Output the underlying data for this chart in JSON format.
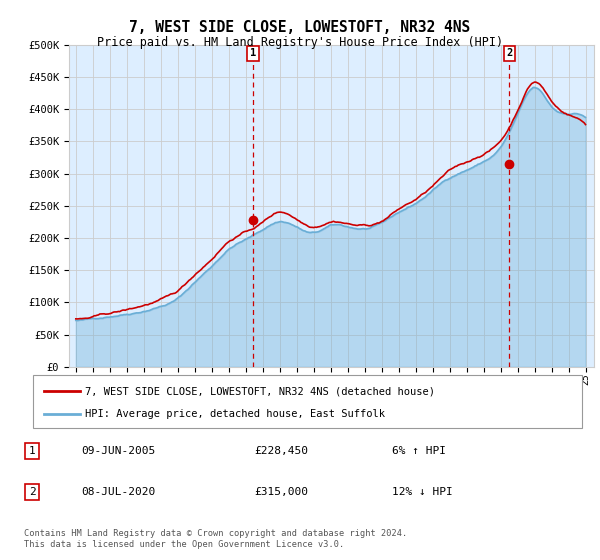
{
  "title": "7, WEST SIDE CLOSE, LOWESTOFT, NR32 4NS",
  "subtitle": "Price paid vs. HM Land Registry's House Price Index (HPI)",
  "ylabel_ticks": [
    "£0",
    "£50K",
    "£100K",
    "£150K",
    "£200K",
    "£250K",
    "£300K",
    "£350K",
    "£400K",
    "£450K",
    "£500K"
  ],
  "ytick_values": [
    0,
    50000,
    100000,
    150000,
    200000,
    250000,
    300000,
    350000,
    400000,
    450000,
    500000
  ],
  "ylim": [
    0,
    500000
  ],
  "legend_line1": "7, WEST SIDE CLOSE, LOWESTOFT, NR32 4NS (detached house)",
  "legend_line2": "HPI: Average price, detached house, East Suffolk",
  "marker1_label": "1",
  "marker1_date": "09-JUN-2005",
  "marker1_price": "£228,450",
  "marker1_hpi": "6% ↑ HPI",
  "marker2_label": "2",
  "marker2_date": "08-JUL-2020",
  "marker2_price": "£315,000",
  "marker2_hpi": "12% ↓ HPI",
  "footer": "Contains HM Land Registry data © Crown copyright and database right 2024.\nThis data is licensed under the Open Government Licence v3.0.",
  "line_color_red": "#cc0000",
  "line_color_blue": "#6aaed6",
  "fill_color_blue": "#d6eaf8",
  "marker_color": "#cc0000",
  "grid_color": "#cccccc",
  "background_color": "#ffffff",
  "plot_bg_color": "#ddeeff",
  "x_start_year": 1995,
  "x_end_year": 2025,
  "purchase1_year": 2005.44,
  "purchase1_price": 228450,
  "purchase2_year": 2020.52,
  "purchase2_price": 315000
}
